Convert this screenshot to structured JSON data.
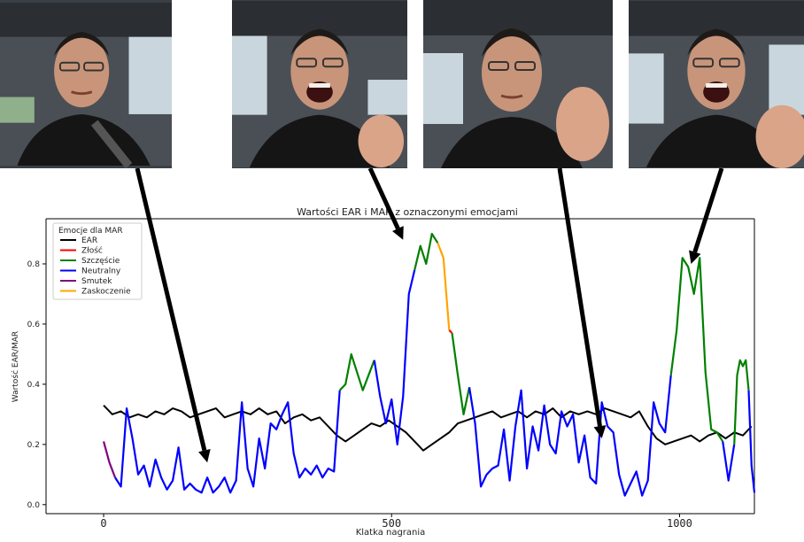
{
  "chart_data": {
    "type": "line",
    "title": "Wartości EAR i MAR z oznaczonymi emocjami",
    "xlabel": "Klatka nagrania",
    "ylabel": "Wartość EAR/MAR",
    "xlim": [
      -100,
      1130
    ],
    "ylim": [
      -0.03,
      0.95
    ],
    "x_ticks": [
      0,
      500,
      1000
    ],
    "x_tick_labels": [
      "0",
      "500",
      "1000"
    ],
    "y_ticks": [
      0.0,
      0.2,
      0.4,
      0.6,
      0.8
    ],
    "y_tick_labels": [
      "0.0",
      "0.2",
      "0.4",
      "0.6",
      "0.8"
    ],
    "grid": false,
    "legend": {
      "title": "Emocje dla MAR",
      "placement": "top-left",
      "entries": [
        {
          "label": "EAR",
          "color": "#000000"
        },
        {
          "label": "Złość",
          "color": "#ff0000"
        },
        {
          "label": "Szczęście",
          "color": "#008000"
        },
        {
          "label": "Neutralny",
          "color": "#0000ff"
        },
        {
          "label": "Smutek",
          "color": "#800080"
        },
        {
          "label": "Zaskoczenie",
          "color": "#ffa500"
        }
      ]
    },
    "ear": {
      "x": [
        0,
        15,
        30,
        45,
        60,
        75,
        90,
        105,
        120,
        135,
        150,
        165,
        180,
        195,
        210,
        225,
        240,
        255,
        270,
        285,
        300,
        315,
        330,
        345,
        360,
        375,
        390,
        405,
        420,
        435,
        450,
        465,
        480,
        495,
        510,
        525,
        540,
        555,
        570,
        585,
        600,
        615,
        630,
        645,
        660,
        675,
        690,
        705,
        720,
        735,
        750,
        765,
        780,
        795,
        810,
        825,
        840,
        855,
        870,
        885,
        900,
        915,
        930,
        945,
        960,
        975,
        990,
        1005,
        1020,
        1035,
        1050,
        1065,
        1080,
        1095,
        1110,
        1125
      ],
      "y": [
        0.33,
        0.3,
        0.31,
        0.29,
        0.3,
        0.29,
        0.31,
        0.3,
        0.32,
        0.31,
        0.29,
        0.3,
        0.31,
        0.32,
        0.29,
        0.3,
        0.31,
        0.3,
        0.32,
        0.3,
        0.31,
        0.27,
        0.29,
        0.3,
        0.28,
        0.29,
        0.26,
        0.23,
        0.21,
        0.23,
        0.25,
        0.27,
        0.26,
        0.28,
        0.26,
        0.24,
        0.21,
        0.18,
        0.2,
        0.22,
        0.24,
        0.27,
        0.28,
        0.29,
        0.3,
        0.31,
        0.29,
        0.3,
        0.31,
        0.29,
        0.31,
        0.3,
        0.32,
        0.29,
        0.31,
        0.3,
        0.31,
        0.3,
        0.32,
        0.31,
        0.3,
        0.29,
        0.31,
        0.26,
        0.22,
        0.2,
        0.21,
        0.22,
        0.23,
        0.21,
        0.23,
        0.24,
        0.22,
        0.24,
        0.23,
        0.26
      ]
    },
    "mar_segments": [
      {
        "emotion": "Smutek",
        "x": [
          0,
          10,
          20
        ],
        "y": [
          0.21,
          0.14,
          0.09
        ]
      },
      {
        "emotion": "Neutralny",
        "x": [
          20,
          30,
          40,
          50,
          60,
          70,
          80,
          90,
          100,
          110,
          120,
          130,
          140,
          150,
          160,
          170,
          180,
          190,
          200,
          210,
          220,
          230,
          240,
          250,
          260,
          270,
          280,
          290,
          300,
          310,
          320,
          330,
          340,
          350,
          360,
          370,
          380,
          390,
          400,
          410
        ],
        "y": [
          0.09,
          0.06,
          0.32,
          0.22,
          0.1,
          0.13,
          0.06,
          0.15,
          0.09,
          0.05,
          0.08,
          0.19,
          0.05,
          0.07,
          0.05,
          0.04,
          0.09,
          0.04,
          0.06,
          0.09,
          0.04,
          0.08,
          0.34,
          0.12,
          0.06,
          0.22,
          0.12,
          0.27,
          0.25,
          0.3,
          0.34,
          0.17,
          0.09,
          0.12,
          0.1,
          0.13,
          0.09,
          0.12,
          0.11,
          0.38
        ]
      },
      {
        "emotion": "Szczęście",
        "x": [
          410,
          420,
          430,
          440,
          450,
          460,
          470
        ],
        "y": [
          0.38,
          0.4,
          0.5,
          0.44,
          0.38,
          0.43,
          0.48
        ]
      },
      {
        "emotion": "Neutralny",
        "x": [
          470,
          480,
          490,
          500,
          510,
          520,
          530,
          540
        ],
        "y": [
          0.48,
          0.36,
          0.27,
          0.35,
          0.2,
          0.36,
          0.7,
          0.78
        ]
      },
      {
        "emotion": "Szczęście",
        "x": [
          540,
          550,
          560,
          570,
          580
        ],
        "y": [
          0.78,
          0.86,
          0.8,
          0.9,
          0.87
        ]
      },
      {
        "emotion": "Zaskoczenie",
        "x": [
          580,
          590,
          600
        ],
        "y": [
          0.87,
          0.82,
          0.58
        ]
      },
      {
        "emotion": "Złość",
        "x": [
          600,
          605
        ],
        "y": [
          0.58,
          0.57
        ]
      },
      {
        "emotion": "Szczęście",
        "x": [
          605,
          615,
          625,
          635
        ],
        "y": [
          0.57,
          0.43,
          0.3,
          0.39
        ]
      },
      {
        "emotion": "Neutralny",
        "x": [
          635,
          645,
          655,
          665,
          675,
          685,
          695,
          705,
          715,
          725,
          735,
          745,
          755,
          765,
          775,
          785,
          795,
          805,
          815,
          825,
          835,
          845,
          855,
          865,
          875,
          885,
          895,
          905,
          915,
          925,
          935,
          945,
          955,
          965,
          975,
          985
        ],
        "y": [
          0.39,
          0.27,
          0.06,
          0.1,
          0.12,
          0.13,
          0.25,
          0.08,
          0.26,
          0.38,
          0.12,
          0.26,
          0.18,
          0.33,
          0.2,
          0.17,
          0.31,
          0.26,
          0.3,
          0.14,
          0.23,
          0.09,
          0.07,
          0.34,
          0.26,
          0.24,
          0.1,
          0.03,
          0.07,
          0.11,
          0.03,
          0.08,
          0.34,
          0.27,
          0.24,
          0.43
        ]
      },
      {
        "emotion": "Szczęście",
        "x": [
          985,
          995,
          1005,
          1015,
          1025,
          1035,
          1045,
          1055,
          1065,
          1075
        ],
        "y": [
          0.43,
          0.58,
          0.82,
          0.79,
          0.7,
          0.82,
          0.44,
          0.25,
          0.24,
          0.21
        ]
      },
      {
        "emotion": "Neutralny",
        "x": [
          1075,
          1085,
          1095
        ],
        "y": [
          0.21,
          0.08,
          0.2
        ]
      },
      {
        "emotion": "Szczęście",
        "x": [
          1095,
          1100,
          1105,
          1110,
          1115,
          1120
        ],
        "y": [
          0.2,
          0.43,
          0.48,
          0.46,
          0.48,
          0.38
        ]
      },
      {
        "emotion": "Neutralny",
        "x": [
          1120,
          1125,
          1130
        ],
        "y": [
          0.38,
          0.13,
          0.04
        ]
      }
    ],
    "annotations": [
      {
        "type": "arrow",
        "from_photo": 0,
        "to": {
          "x": 180,
          "y": 0.14
        }
      },
      {
        "type": "arrow",
        "from_photo": 1,
        "to": {
          "x": 520,
          "y": 0.88
        }
      },
      {
        "type": "arrow",
        "from_photo": 2,
        "to": {
          "x": 865,
          "y": 0.22
        }
      },
      {
        "type": "arrow",
        "from_photo": 3,
        "to": {
          "x": 1020,
          "y": 0.8
        }
      }
    ]
  },
  "photos": [
    {
      "expression": "neutral-face"
    },
    {
      "expression": "open-mouth-happy-face"
    },
    {
      "expression": "glance-side-face"
    },
    {
      "expression": "open-mouth-happy-face"
    }
  ]
}
